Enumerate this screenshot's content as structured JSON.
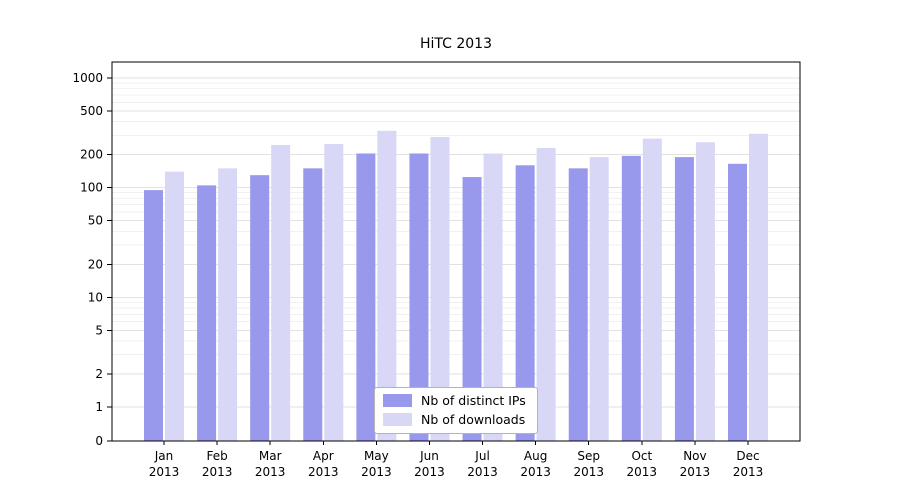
{
  "page": {
    "background": "#ffffff"
  },
  "chart_data": {
    "type": "bar",
    "title": "HiTC 2013",
    "scale": "symlog",
    "grid": true,
    "legend_position": "lower center",
    "categories": [
      "Jan",
      "Feb",
      "Mar",
      "Apr",
      "May",
      "Jun",
      "Jul",
      "Aug",
      "Sep",
      "Oct",
      "Nov",
      "Dec"
    ],
    "category_year": "2013",
    "series": [
      {
        "name": "Nb of distinct IPs",
        "color": "#9898ec",
        "values": [
          95,
          105,
          130,
          150,
          205,
          205,
          125,
          160,
          150,
          195,
          190,
          165
        ]
      },
      {
        "name": "Nb of downloads",
        "color": "#d8d8f6",
        "values": [
          140,
          150,
          245,
          250,
          330,
          290,
          205,
          230,
          190,
          280,
          260,
          310
        ]
      }
    ],
    "yticks": [
      0,
      1,
      2,
      5,
      10,
      20,
      50,
      100,
      200,
      500,
      1000
    ],
    "minor_yticks": [
      3,
      4,
      6,
      7,
      8,
      9,
      30,
      40,
      60,
      70,
      80,
      90,
      300,
      400,
      600,
      700,
      800,
      900
    ],
    "ylim": [
      0,
      1400
    ]
  },
  "colors": {
    "grid_major": "#e2e2e2",
    "grid_minor": "#f1f1f1",
    "axis": "#000000",
    "tick_label": "#000000",
    "legend_border": "#b3b3b3"
  }
}
